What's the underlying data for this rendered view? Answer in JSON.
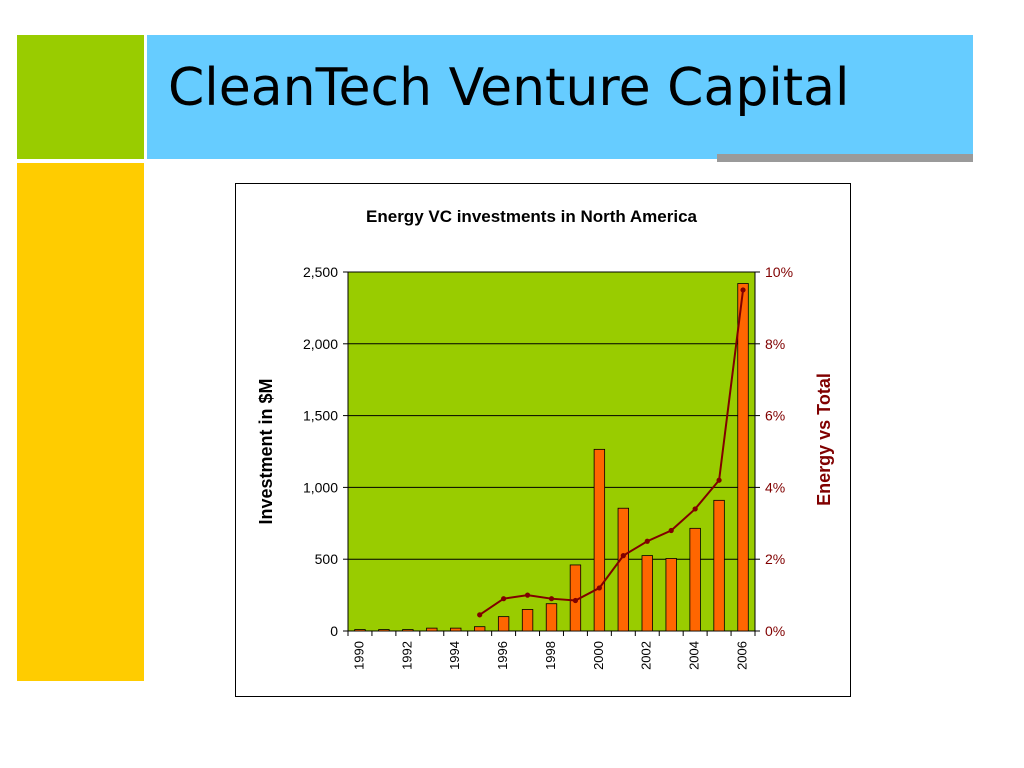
{
  "slide": {
    "title": "CleanTech Venture Capital"
  },
  "colors": {
    "accent_green": "#99cc00",
    "accent_yellow": "#ffcc00",
    "title_band_blue": "#66ccff",
    "rule_gray": "#9a9a9a",
    "plot_background": "#99cc00",
    "bar_fill": "#ff6600",
    "line_color": "#800000"
  },
  "chart_data": {
    "type": "bar",
    "title": "Energy VC investments in North America",
    "ylabel": "Investment in $M",
    "y2label": "Energy vs Total",
    "ylim": [
      0,
      2500
    ],
    "y2lim": [
      0,
      10
    ],
    "yticks": [
      "0",
      "500",
      "1,000",
      "1,500",
      "2,000",
      "2,500"
    ],
    "y2ticks": [
      "0%",
      "2%",
      "4%",
      "6%",
      "8%",
      "10%"
    ],
    "xtick_labels": [
      "1990",
      "1992",
      "1994",
      "1996",
      "1998",
      "2000",
      "2002",
      "2004",
      "2006"
    ],
    "grid": true,
    "categories": [
      "1990",
      "1991",
      "1992",
      "1993",
      "1994",
      "1995",
      "1996",
      "1997",
      "1998",
      "1999",
      "2000",
      "2001",
      "2002",
      "2003",
      "2004",
      "2005",
      "2006"
    ],
    "series": [
      {
        "type": "bar",
        "axis": "left",
        "values": [
          10,
          10,
          10,
          20,
          20,
          30,
          100,
          150,
          190,
          460,
          1265,
          855,
          525,
          505,
          715,
          910,
          2420
        ]
      },
      {
        "type": "line",
        "axis": "right",
        "unit": "%",
        "values": [
          null,
          null,
          null,
          null,
          null,
          0.45,
          0.9,
          1.0,
          0.9,
          0.85,
          1.2,
          2.1,
          2.5,
          2.8,
          3.4,
          4.2,
          9.5
        ]
      }
    ]
  }
}
